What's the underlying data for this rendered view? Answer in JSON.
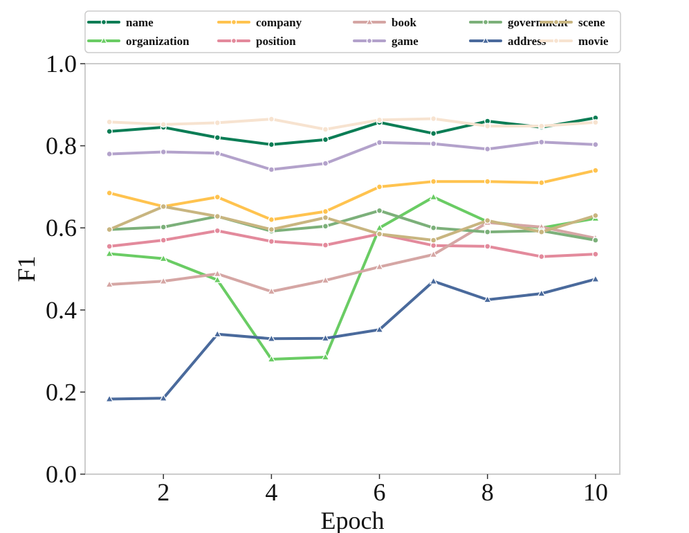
{
  "chart_data": {
    "type": "line",
    "title": "",
    "xlabel": "Epoch",
    "ylabel": "F1",
    "x": [
      1,
      2,
      3,
      4,
      5,
      6,
      7,
      8,
      9,
      10
    ],
    "xticks": [
      2,
      4,
      6,
      8,
      10
    ],
    "xtick_labels": [
      "2",
      "4",
      "6",
      "8",
      "10"
    ],
    "yticks": [
      0.0,
      0.2,
      0.4,
      0.6,
      0.8,
      1.0
    ],
    "ytick_labels": [
      "0.0",
      "0.2",
      "0.4",
      "0.6",
      "0.8",
      "1.0"
    ],
    "xlim": [
      0.55,
      10.45
    ],
    "ylim": [
      0.0,
      1.0
    ],
    "grid": false,
    "legend_position": "top",
    "series": [
      {
        "name": "name",
        "color": "#0a7d55",
        "marker": "circle",
        "values": [
          0.835,
          0.845,
          0.82,
          0.803,
          0.815,
          0.857,
          0.83,
          0.86,
          0.845,
          0.868
        ]
      },
      {
        "name": "organization",
        "color": "#6acc64",
        "marker": "triangle",
        "values": [
          0.537,
          0.525,
          0.473,
          0.28,
          0.285,
          0.6,
          0.675,
          0.615,
          0.6,
          0.623
        ]
      },
      {
        "name": "company",
        "color": "#ffc34f",
        "marker": "circle",
        "values": [
          0.685,
          0.652,
          0.675,
          0.62,
          0.64,
          0.7,
          0.713,
          0.713,
          0.71,
          0.74
        ]
      },
      {
        "name": "position",
        "color": "#e38a9c",
        "marker": "circle",
        "values": [
          0.555,
          0.57,
          0.593,
          0.567,
          0.558,
          0.585,
          0.557,
          0.555,
          0.53,
          0.536
        ]
      },
      {
        "name": "book",
        "color": "#d5a6a4",
        "marker": "triangle",
        "values": [
          0.462,
          0.47,
          0.488,
          0.445,
          0.472,
          0.505,
          0.535,
          0.613,
          0.602,
          0.575
        ]
      },
      {
        "name": "game",
        "color": "#b3a2cb",
        "marker": "circle",
        "values": [
          0.78,
          0.785,
          0.782,
          0.742,
          0.757,
          0.808,
          0.805,
          0.792,
          0.809,
          0.803
        ]
      },
      {
        "name": "government",
        "color": "#7cb07a",
        "marker": "circle",
        "values": [
          0.596,
          0.602,
          0.628,
          0.592,
          0.604,
          0.642,
          0.6,
          0.59,
          0.593,
          0.57
        ]
      },
      {
        "name": "address",
        "color": "#4a6a9c",
        "marker": "triangle",
        "values": [
          0.183,
          0.185,
          0.341,
          0.33,
          0.331,
          0.352,
          0.47,
          0.425,
          0.44,
          0.475
        ]
      },
      {
        "name": "scene",
        "color": "#c8b580",
        "marker": "circle",
        "values": [
          0.596,
          0.652,
          0.628,
          0.596,
          0.625,
          0.585,
          0.57,
          0.618,
          0.59,
          0.63
        ]
      },
      {
        "name": "movie",
        "color": "#f7e3d0",
        "marker": "circle",
        "values": [
          0.858,
          0.852,
          0.856,
          0.865,
          0.84,
          0.863,
          0.866,
          0.848,
          0.848,
          0.857
        ]
      }
    ]
  }
}
